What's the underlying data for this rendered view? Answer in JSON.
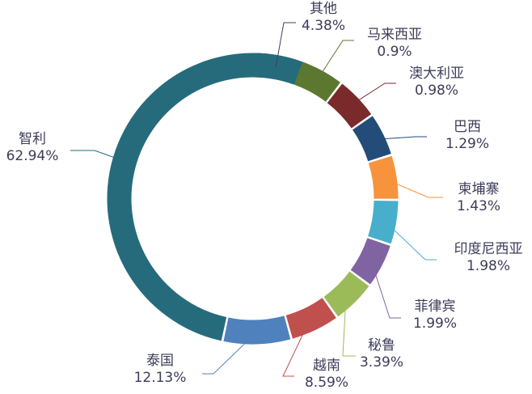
{
  "chart_data": {
    "type": "pie",
    "donut": true,
    "title": "",
    "legend": "none",
    "slices": [
      {
        "name": "其他",
        "value": 4.38,
        "percent_label": "4.38%",
        "color": "#4b3a66"
      },
      {
        "name": "马来西亚",
        "value": 0.9,
        "percent_label": "0.9%",
        "color": "#5c7830"
      },
      {
        "name": "澳大利亚",
        "value": 0.98,
        "percent_label": "0.98%",
        "color": "#7a2a2a"
      },
      {
        "name": "巴西",
        "value": 1.29,
        "percent_label": "1.29%",
        "color": "#244c78"
      },
      {
        "name": "柬埔寨",
        "value": 1.43,
        "percent_label": "1.43%",
        "color": "#f7933d"
      },
      {
        "name": "印度尼西亚",
        "value": 1.98,
        "percent_label": "1.98%",
        "color": "#47aecb"
      },
      {
        "name": "菲律宾",
        "value": 1.99,
        "percent_label": "1.99%",
        "color": "#8064a2"
      },
      {
        "name": "秘鲁",
        "value": 3.39,
        "percent_label": "3.39%",
        "color": "#9bbb59"
      },
      {
        "name": "越南",
        "value": 8.59,
        "percent_label": "8.59%",
        "color": "#c0504d"
      },
      {
        "name": "泰国",
        "value": 12.13,
        "percent_label": "12.13%",
        "color": "#4f81bd"
      },
      {
        "name": "智利",
        "value": 62.94,
        "percent_label": "62.94%",
        "color": "#256b7c"
      }
    ]
  }
}
